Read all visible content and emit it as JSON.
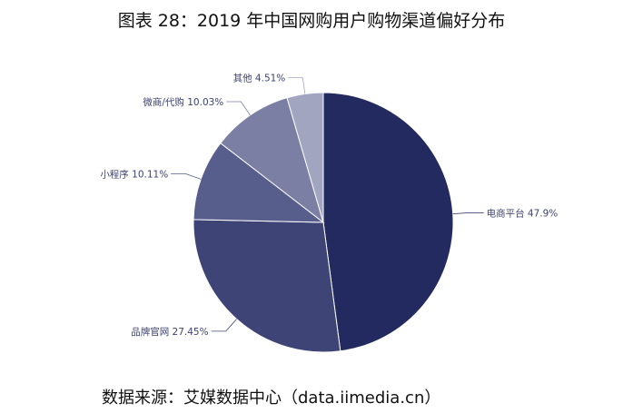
{
  "title": "图表 28：2019 年中国网购用户购物渠道偏好分布",
  "source": "数据来源：艾媒数据中心（data.iimedia.cn）",
  "chart_data": {
    "type": "pie",
    "title": "图表 28：2019 年中国网购用户购物渠道偏好分布",
    "slices": [
      {
        "name": "电商平台",
        "value": 47.9,
        "label": "电商平台 47.9%",
        "color": "#232a60"
      },
      {
        "name": "品牌官网",
        "value": 27.45,
        "label": "品牌官网 27.45%",
        "color": "#3e4475"
      },
      {
        "name": "小程序",
        "value": 10.11,
        "label": "小程序 10.11%",
        "color": "#585e8c"
      },
      {
        "name": "微商/代购",
        "value": 10.03,
        "label": "微商/代购 10.03%",
        "color": "#7b7fa3"
      },
      {
        "name": "其他",
        "value": 4.51,
        "label": "其他 4.51%",
        "color": "#a2a5c0"
      }
    ],
    "label_color": "#3c4270"
  }
}
